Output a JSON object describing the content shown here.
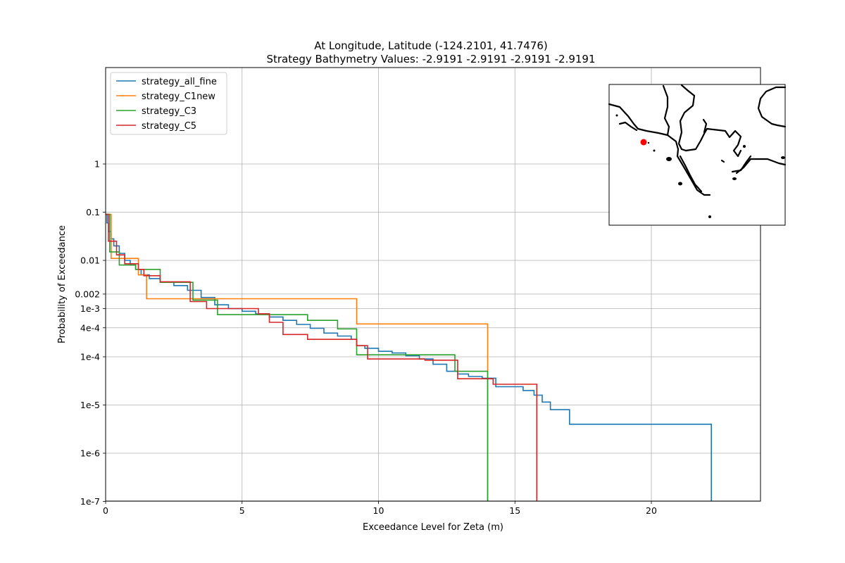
{
  "chart_data": {
    "type": "line",
    "step": true,
    "title": [
      "At Longitude, Latitude (-124.2101,  41.7476)",
      "Strategy Bathymetry Values:   -2.9191   -2.9191   -2.9191   -2.9191"
    ],
    "xlabel": "Exceedance Level for Zeta (m)",
    "ylabel": "Probability of Exceedance",
    "xscale": "linear",
    "yscale": "log",
    "xlim": [
      0,
      24
    ],
    "ylim": [
      1e-07,
      20
    ],
    "xticks": [
      0,
      5,
      10,
      15,
      20
    ],
    "xtick_labels": [
      "0",
      "5",
      "10",
      "15",
      "20"
    ],
    "yticks": [
      1e-07,
      1e-06,
      1e-05,
      0.0001,
      0.0004,
      0.001,
      0.002,
      0.01,
      0.1,
      1
    ],
    "ytick_labels": [
      "1e-7",
      "1e-6",
      "1e-5",
      "1e-4",
      "4e-4",
      "1e-3",
      "0.002",
      "0.01",
      "0.1",
      "1"
    ],
    "grid": true,
    "legend_position": "upper-left",
    "series": [
      {
        "name": "strategy_all_fine",
        "color": "#1f77b4",
        "x": [
          0.0,
          0.05,
          0.1,
          0.2,
          0.3,
          0.5,
          0.7,
          0.9,
          1.1,
          1.3,
          1.6,
          2.0,
          2.5,
          3.0,
          3.5,
          4.0,
          4.5,
          5.0,
          5.5,
          6.0,
          6.5,
          7.0,
          7.5,
          8.0,
          8.5,
          9.0,
          9.2,
          9.5,
          10.0,
          10.5,
          11.0,
          11.5,
          12.0,
          12.5,
          12.9,
          13.3,
          13.8,
          14.3,
          15.0,
          15.3,
          15.7,
          16.0,
          16.3,
          16.8,
          17.0,
          22.2
        ],
        "y": [
          0.09,
          0.06,
          0.04,
          0.028,
          0.02,
          0.014,
          0.01,
          0.008,
          0.0065,
          0.005,
          0.0042,
          0.0035,
          0.003,
          0.0024,
          0.0017,
          0.0012,
          0.001,
          0.00088,
          0.00078,
          0.00067,
          0.00057,
          0.00047,
          0.00039,
          0.00031,
          0.00027,
          0.00023,
          0.00017,
          0.00015,
          0.00013,
          0.00012,
          0.000105,
          9e-05,
          7e-05,
          5e-05,
          4.4e-05,
          3.9e-05,
          3.6e-05,
          2.4e-05,
          2.4e-05,
          2e-05,
          1.6e-05,
          1.15e-05,
          8e-06,
          8e-06,
          4e-06,
          4e-06
        ],
        "drop_to": 1e-07
      },
      {
        "name": "strategy_C1new",
        "color": "#ff7f0e",
        "x": [
          0.0,
          0.2,
          1.1,
          1.2,
          1.5,
          6.2,
          9.2,
          14.0
        ],
        "y": [
          0.09,
          0.011,
          0.011,
          0.005,
          0.0016,
          0.0016,
          0.00048,
          9e-05
        ],
        "drop_to": 1e-07
      },
      {
        "name": "strategy_C3",
        "color": "#2ca02c",
        "x": [
          0.0,
          0.15,
          0.5,
          1.1,
          2.0,
          3.2,
          4.1,
          7.4,
          8.5,
          9.2,
          12.8,
          14.0
        ],
        "y": [
          0.09,
          0.015,
          0.008,
          0.0065,
          0.0035,
          0.0015,
          0.00075,
          0.00057,
          0.00038,
          0.00011,
          5e-05,
          5e-05
        ],
        "drop_to": 1e-07
      },
      {
        "name": "strategy_C5",
        "color": "#d62728",
        "x": [
          0.0,
          0.1,
          0.4,
          0.7,
          1.2,
          1.4,
          2.0,
          3.1,
          3.7,
          5.6,
          6.0,
          6.5,
          7.4,
          9.2,
          9.6,
          11.7,
          12.9,
          14.2,
          15.8
        ],
        "y": [
          0.09,
          0.025,
          0.013,
          0.0085,
          0.0065,
          0.0048,
          0.0036,
          0.0014,
          0.001,
          0.00078,
          0.00052,
          0.00029,
          0.00023,
          0.00017,
          9e-05,
          8.5e-05,
          3.5e-05,
          2.7e-05,
          2.7e-05
        ],
        "drop_to": 1e-07
      }
    ],
    "inset": {
      "type": "map",
      "marker_color": "#ff0000"
    }
  }
}
